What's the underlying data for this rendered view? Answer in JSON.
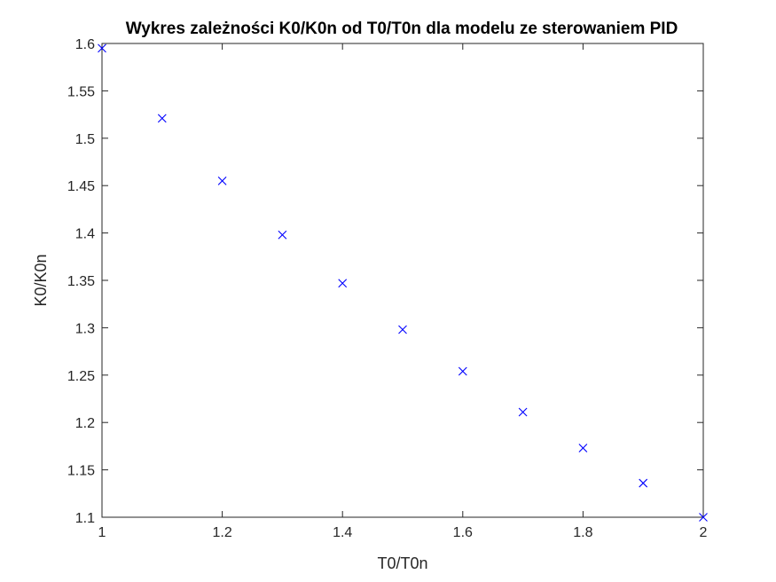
{
  "chart_data": {
    "type": "scatter",
    "title": "Wykres zależności K0/K0n od T0/T0n dla modelu ze sterowaniem PID",
    "xlabel": "T0/T0n",
    "ylabel": "K0/K0n",
    "xlim": [
      1,
      2
    ],
    "ylim": [
      1.1,
      1.6
    ],
    "xticks": [
      "1",
      "1.2",
      "1.4",
      "1.6",
      "1.8",
      "2"
    ],
    "yticks": [
      "1.1",
      "1.15",
      "1.2",
      "1.25",
      "1.3",
      "1.35",
      "1.4",
      "1.45",
      "1.5",
      "1.55",
      "1.6"
    ],
    "grid": false,
    "marker": "x",
    "series": [
      {
        "x": [
          1.0,
          1.1,
          1.2,
          1.3,
          1.4,
          1.5,
          1.6,
          1.7,
          1.8,
          1.9,
          2.0
        ],
        "y": [
          1.595,
          1.521,
          1.455,
          1.398,
          1.347,
          1.298,
          1.254,
          1.211,
          1.173,
          1.136,
          1.1
        ]
      }
    ],
    "colors": {
      "marker": "#0000ff",
      "axes": "#262626",
      "title": "#000000"
    }
  }
}
